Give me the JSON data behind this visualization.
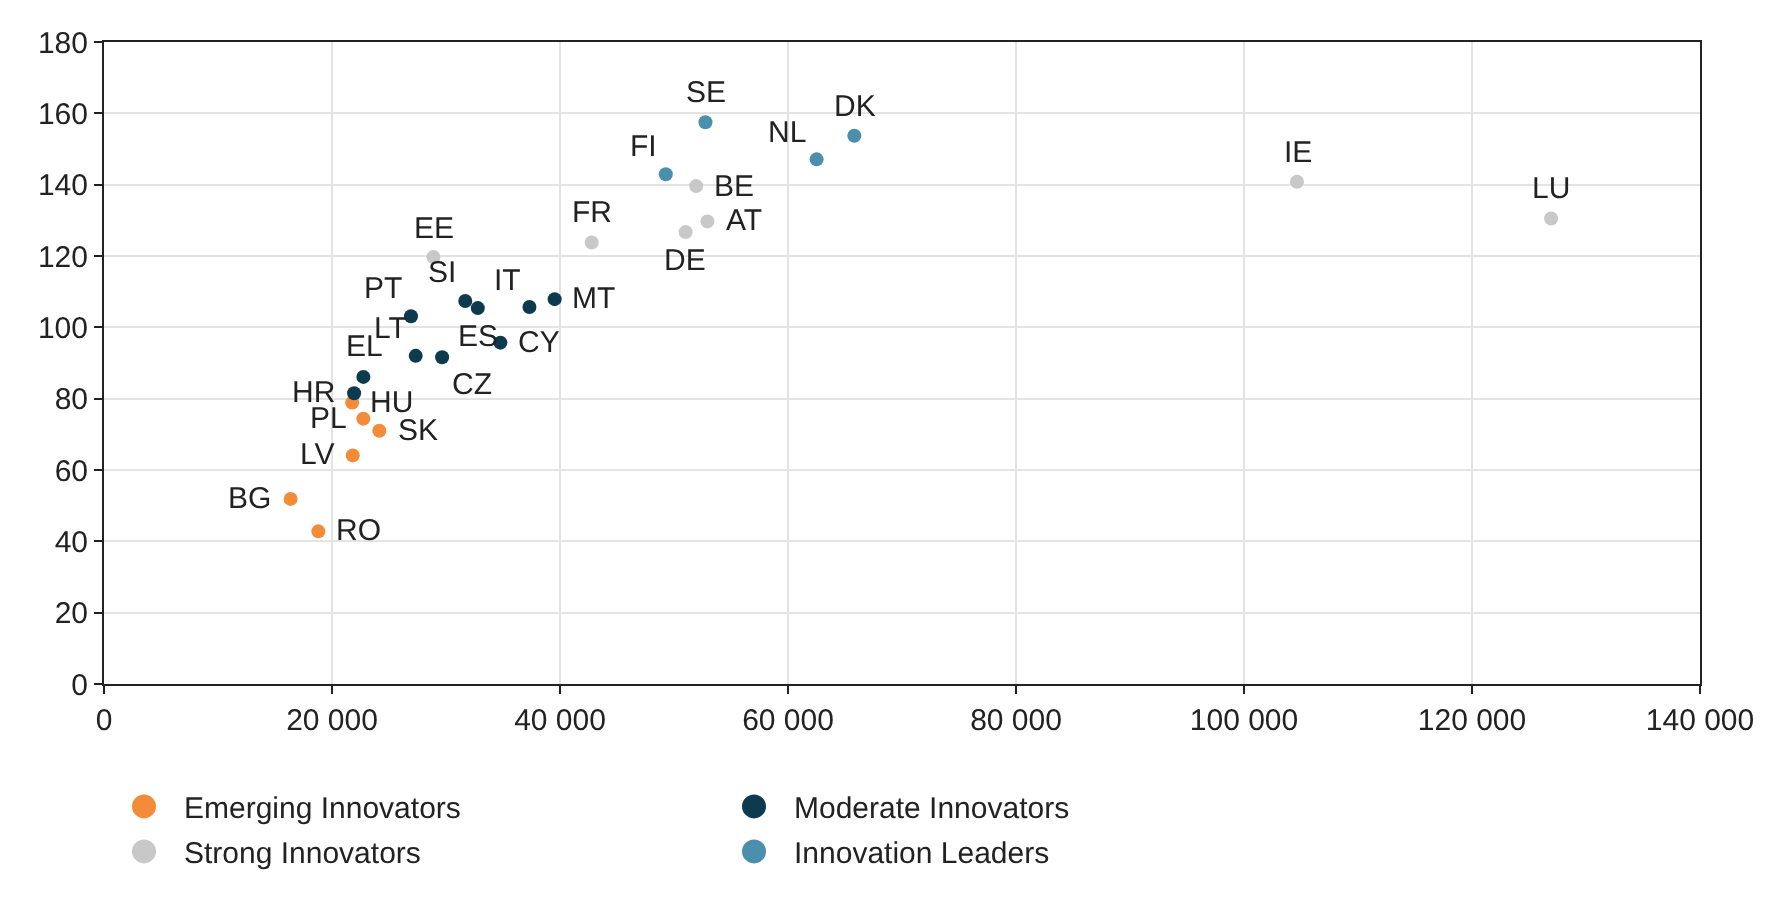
{
  "chart_data": {
    "type": "scatter",
    "xlim": [
      0,
      140000
    ],
    "ylim": [
      0,
      180
    ],
    "xticks": [
      0,
      {
        "value": 20000,
        "label": "20 000"
      },
      {
        "value": 40000,
        "label": "40 000"
      },
      {
        "value": 60000,
        "label": "60 000"
      },
      {
        "value": 80000,
        "label": "80 000"
      },
      {
        "value": 100000,
        "label": "100 000"
      },
      {
        "value": 120000,
        "label": "120 000"
      },
      {
        "value": 140000,
        "label": "140 000"
      }
    ],
    "yticks": [
      0,
      20,
      40,
      60,
      80,
      100,
      120,
      140,
      160,
      180
    ],
    "grid": true,
    "legend": "bottom",
    "marker": "circle",
    "series": [
      {
        "name": "Emerging Innovators",
        "color": "#f28c38",
        "x": [
          21770,
          22750,
          24150,
          21820,
          16370,
          18800
        ],
        "values": [
          78.9,
          74.4,
          71.0,
          64.1,
          51.9,
          42.8
        ]
      },
      {
        "name": "Moderate Innovators",
        "color": "#0e3a4f",
        "x": [
          21940,
          22750,
          26930,
          31690,
          32790,
          37320,
          39530,
          34770,
          27340,
          29660
        ],
        "values": [
          81.5,
          86.1,
          103.1,
          107.4,
          105.4,
          105.7,
          107.9,
          95.7,
          92.0,
          91.6
        ]
      },
      {
        "name": "Strong Innovators",
        "color": "#c8c8c8",
        "x": [
          28900,
          42780,
          51020,
          52930,
          51950,
          104650,
          126940
        ],
        "values": [
          119.7,
          123.8,
          126.7,
          129.7,
          139.6,
          140.8,
          130.5
        ]
      },
      {
        "name": "Innovation Leaders",
        "color": "#4a8fab",
        "x": [
          52760,
          49280,
          62510,
          65820
        ],
        "values": [
          157.5,
          142.9,
          147.1,
          153.7
        ]
      }
    ],
    "annotations": [
      {
        "text": "HU",
        "x": 21770,
        "y": 78.9
      },
      {
        "text": "PL",
        "x": 22750,
        "y": 74.4
      },
      {
        "text": "SK",
        "x": 24150,
        "y": 71.0
      },
      {
        "text": "LV",
        "x": 21820,
        "y": 64.1
      },
      {
        "text": "BG",
        "x": 16370,
        "y": 51.9
      },
      {
        "text": "RO",
        "x": 18800,
        "y": 42.8
      },
      {
        "text": "HR",
        "x": 21940,
        "y": 81.5
      },
      {
        "text": "EL",
        "x": 22750,
        "y": 86.1
      },
      {
        "text": "PT",
        "x": 26930,
        "y": 103.1
      },
      {
        "text": "SI",
        "x": 31690,
        "y": 107.4
      },
      {
        "text": "ES",
        "x": 32790,
        "y": 105.4
      },
      {
        "text": "IT",
        "x": 37320,
        "y": 105.7
      },
      {
        "text": "MT",
        "x": 39530,
        "y": 107.9
      },
      {
        "text": "CY",
        "x": 34770,
        "y": 95.7
      },
      {
        "text": "LT",
        "x": 27340,
        "y": 92.0
      },
      {
        "text": "CZ",
        "x": 29660,
        "y": 91.6
      },
      {
        "text": "EE",
        "x": 28900,
        "y": 119.7
      },
      {
        "text": "FR",
        "x": 42780,
        "y": 123.8
      },
      {
        "text": "DE",
        "x": 51020,
        "y": 126.7
      },
      {
        "text": "AT",
        "x": 52930,
        "y": 129.7
      },
      {
        "text": "BE",
        "x": 51950,
        "y": 139.6
      },
      {
        "text": "IE",
        "x": 104650,
        "y": 140.8
      },
      {
        "text": "LU",
        "x": 126940,
        "y": 130.5
      },
      {
        "text": "SE",
        "x": 52760,
        "y": 157.5
      },
      {
        "text": "FI",
        "x": 49280,
        "y": 142.9
      },
      {
        "text": "NL",
        "x": 62510,
        "y": 147.1
      },
      {
        "text": "DK",
        "x": 65820,
        "y": 153.7
      }
    ]
  }
}
